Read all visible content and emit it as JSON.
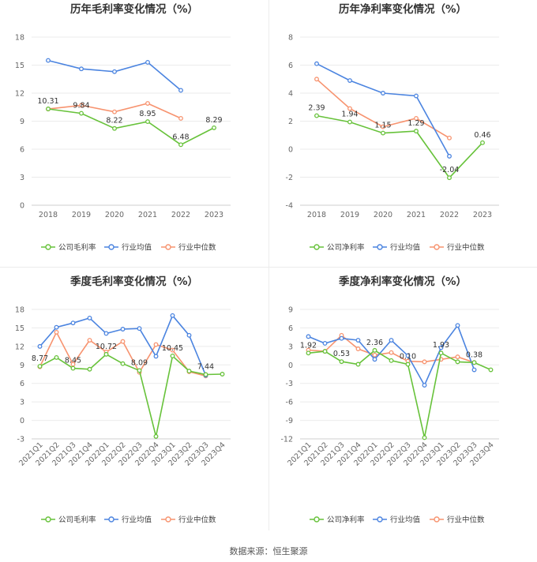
{
  "source": "数据来源：恒生聚源",
  "legend_labels": {
    "gross": [
      "公司毛利率",
      "行业均值",
      "行业中位数"
    ],
    "net": [
      "公司净利率",
      "行业均值",
      "行业中位数"
    ]
  },
  "colors": {
    "company": "#67c23a",
    "industry_mean": "#4b84e0",
    "industry_median": "#f7936f"
  },
  "chart_data": [
    {
      "type": "line",
      "title": "历年毛利率变化情况（%）",
      "categories": [
        "2018",
        "2019",
        "2020",
        "2021",
        "2022",
        "2023"
      ],
      "ylim": [
        0,
        18
      ],
      "yticks": [
        0,
        3,
        6,
        9,
        12,
        15,
        18
      ],
      "label_series": 0,
      "series": [
        {
          "name": "公司毛利率",
          "values": [
            10.31,
            9.84,
            8.22,
            8.95,
            6.48,
            8.29
          ],
          "labels": [
            "10.31",
            "9.84",
            "8.22",
            "8.95",
            "6.48",
            "8.29"
          ]
        },
        {
          "name": "行业均值",
          "values": [
            15.5,
            14.6,
            14.3,
            15.3,
            12.3,
            null
          ]
        },
        {
          "name": "行业中位数",
          "values": [
            10.3,
            10.7,
            10.0,
            10.9,
            9.3,
            null
          ]
        }
      ]
    },
    {
      "type": "line",
      "title": "历年净利率变化情况（%）",
      "categories": [
        "2018",
        "2019",
        "2020",
        "2021",
        "2022",
        "2023"
      ],
      "ylim": [
        -4,
        8
      ],
      "yticks": [
        -4,
        -2,
        0,
        2,
        4,
        6,
        8
      ],
      "label_series": 0,
      "series": [
        {
          "name": "公司净利率",
          "values": [
            2.39,
            1.94,
            1.15,
            1.29,
            -2.04,
            0.46
          ],
          "labels": [
            "2.39",
            "1.94",
            "1.15",
            "1.29",
            "-2.04",
            "0.46"
          ]
        },
        {
          "name": "行业均值",
          "values": [
            6.1,
            4.9,
            4.0,
            3.8,
            -0.5,
            null
          ]
        },
        {
          "name": "行业中位数",
          "values": [
            5.0,
            2.9,
            1.6,
            2.2,
            0.8,
            null
          ]
        }
      ]
    },
    {
      "type": "line",
      "title": "季度毛利率变化情况（%）",
      "categories": [
        "2021Q1",
        "2021Q2",
        "2021Q3",
        "2021Q4",
        "2022Q1",
        "2022Q2",
        "2022Q3",
        "2022Q4",
        "2023Q1",
        "2023Q2",
        "2023Q3",
        "2023Q4"
      ],
      "ylim": [
        -3,
        18
      ],
      "yticks": [
        -3,
        0,
        3,
        6,
        9,
        12,
        15,
        18
      ],
      "label_series": 0,
      "series": [
        {
          "name": "公司毛利率",
          "values": [
            8.77,
            10.2,
            8.45,
            8.3,
            10.72,
            9.2,
            8.09,
            -2.6,
            10.45,
            8.0,
            7.44,
            7.5
          ],
          "labels": [
            "8.77",
            "",
            "8.45",
            "",
            "10.72",
            "",
            "8.09",
            "",
            "10.45",
            "",
            "7.44",
            ""
          ]
        },
        {
          "name": "行业均值",
          "values": [
            12.0,
            15.1,
            15.8,
            16.6,
            14.1,
            14.8,
            14.9,
            10.4,
            17.0,
            13.8,
            7.3,
            null
          ]
        },
        {
          "name": "行业中位数",
          "values": [
            8.7,
            14.3,
            9.1,
            13.0,
            11.1,
            12.8,
            7.8,
            12.3,
            11.4,
            7.9,
            7.2,
            null
          ]
        }
      ]
    },
    {
      "type": "line",
      "title": "季度净利率变化情况（%）",
      "categories": [
        "2021Q1",
        "2021Q2",
        "2021Q3",
        "2021Q4",
        "2022Q1",
        "2022Q2",
        "2022Q3",
        "2022Q4",
        "2023Q1",
        "2023Q2",
        "2023Q3",
        "2023Q4"
      ],
      "ylim": [
        -12,
        9
      ],
      "yticks": [
        -12,
        -9,
        -6,
        -3,
        0,
        3,
        6,
        9
      ],
      "label_series": 0,
      "series": [
        {
          "name": "公司净利率",
          "values": [
            1.92,
            2.2,
            0.53,
            0.1,
            2.36,
            0.7,
            0.1,
            -11.8,
            1.93,
            0.5,
            0.38,
            -0.8
          ],
          "labels": [
            "1.92",
            "",
            "0.53",
            "",
            "2.36",
            "",
            "0.10",
            "",
            "1.93",
            "",
            "0.38",
            ""
          ]
        },
        {
          "name": "行业均值",
          "values": [
            4.6,
            3.5,
            4.3,
            4.0,
            0.9,
            4.0,
            1.5,
            -3.3,
            2.8,
            6.4,
            -0.8,
            null
          ]
        },
        {
          "name": "行业中位数",
          "values": [
            2.4,
            2.2,
            4.8,
            2.6,
            1.6,
            2.0,
            0.6,
            0.5,
            0.9,
            1.3,
            0.4,
            null
          ]
        }
      ]
    }
  ]
}
